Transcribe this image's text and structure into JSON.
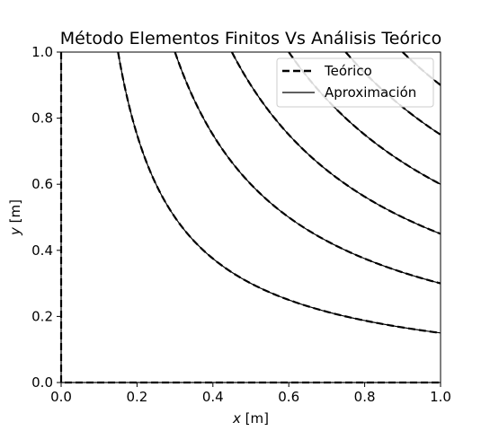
{
  "chart_data": {
    "type": "line",
    "title": "Método Elementos Finitos Vs Análisis Teórico",
    "xlabel_var": "x",
    "xlabel_unit": " [m]",
    "ylabel_var": "y",
    "ylabel_unit": " [m]",
    "xlim": [
      0.0,
      1.0
    ],
    "ylim": [
      0.0,
      1.0
    ],
    "xticks": [
      "0.0",
      "0.2",
      "0.4",
      "0.6",
      "0.8",
      "1.0"
    ],
    "yticks": [
      "0.0",
      "0.2",
      "0.4",
      "0.6",
      "0.8",
      "1.0"
    ],
    "grid": false,
    "legend_position": "top-right",
    "legend": [
      {
        "label": "Teórico",
        "style": "dashed"
      },
      {
        "label": "Aproximación",
        "style": "solid"
      }
    ],
    "contour_levels": [
      0.0,
      0.15,
      0.3,
      0.45,
      0.6,
      0.75,
      0.9
    ],
    "contour_relation": "x*y",
    "line_color": "#000000"
  }
}
